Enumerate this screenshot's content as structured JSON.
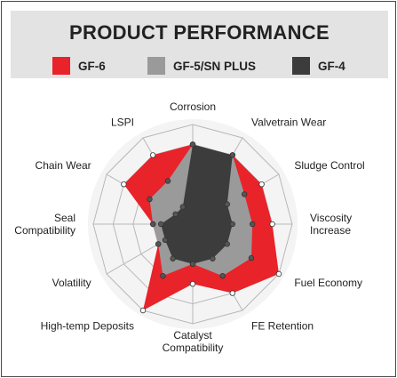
{
  "title": "PRODUCT PERFORMANCE",
  "legend": [
    {
      "label": "GF-6",
      "color": "#e8232a"
    },
    {
      "label": "GF-5/SN PLUS",
      "color": "#9a9a9a"
    },
    {
      "label": "GF-4",
      "color": "#3c3c3c"
    }
  ],
  "chart_data": {
    "type": "radar",
    "title": "PRODUCT PERFORMANCE",
    "axes": [
      {
        "label": "Corrosion"
      },
      {
        "label": "Valvetrain Wear"
      },
      {
        "label": "Sludge Control"
      },
      {
        "label": "Viscosity\nIncrease"
      },
      {
        "label": "Fuel Economy"
      },
      {
        "label": "FE Retention"
      },
      {
        "label": "Catalyst\nCompatibility"
      },
      {
        "label": "High-temp Deposits"
      },
      {
        "label": "Volatility"
      },
      {
        "label": "Seal\nCompatibility"
      },
      {
        "label": "Chain Wear"
      },
      {
        "label": "LSPI"
      }
    ],
    "rings": 5,
    "scale_max": 5,
    "grid": true,
    "legend_position": "top",
    "series": [
      {
        "name": "GF-6",
        "color": "#e8232a",
        "values": [
          4,
          4,
          4,
          4,
          5,
          4,
          3,
          5,
          2,
          2,
          4,
          4
        ]
      },
      {
        "name": "GF-5/SN PLUS",
        "color": "#9a9a9a",
        "values": [
          4,
          4,
          3,
          3,
          3.4,
          3,
          2,
          3,
          2,
          2,
          2.5,
          2.5
        ]
      },
      {
        "name": "GF-4",
        "color": "#3c3c3c",
        "values": [
          4,
          4,
          2,
          2,
          2,
          2,
          2,
          2,
          1.6,
          1.6,
          1,
          1
        ]
      }
    ]
  }
}
